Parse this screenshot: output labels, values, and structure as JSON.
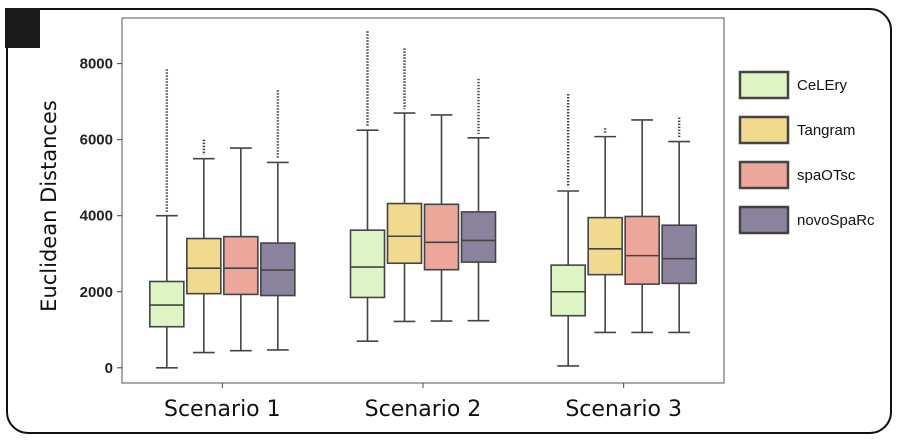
{
  "chart_data": {
    "type": "box",
    "title": "",
    "ylabel": "Euclidean Distances",
    "xlabel": "",
    "ylim": [
      -400,
      9200
    ],
    "yticks": [
      0,
      2000,
      4000,
      6000,
      8000
    ],
    "ytick_labels": [
      "0",
      "2000",
      "4000",
      "6000",
      "8000"
    ],
    "categories": [
      "Scenario 1",
      "Scenario 2",
      "Scenario 3"
    ],
    "legend_position": "right",
    "series": [
      {
        "name": "CeLEry",
        "color": "#dff4c4",
        "boxes": [
          {
            "whisker_low": 0,
            "q1": 1080,
            "median": 1650,
            "q3": 2270,
            "whisker_high": 4000,
            "outliers_from": 4100,
            "outliers_to": 7850
          },
          {
            "whisker_low": 700,
            "q1": 1850,
            "median": 2650,
            "q3": 3620,
            "whisker_high": 6250,
            "outliers_from": 6350,
            "outliers_to": 8850
          },
          {
            "whisker_low": 50,
            "q1": 1370,
            "median": 2000,
            "q3": 2700,
            "whisker_high": 4650,
            "outliers_from": 4750,
            "outliers_to": 7200
          }
        ]
      },
      {
        "name": "Tangram",
        "color": "#f1d98d",
        "boxes": [
          {
            "whisker_low": 400,
            "q1": 1950,
            "median": 2620,
            "q3": 3400,
            "whisker_high": 5500,
            "outliers_from": 5600,
            "outliers_to": 6000
          },
          {
            "whisker_low": 1220,
            "q1": 2750,
            "median": 3460,
            "q3": 4320,
            "whisker_high": 6700,
            "outliers_from": 6800,
            "outliers_to": 8400
          },
          {
            "whisker_low": 930,
            "q1": 2450,
            "median": 3130,
            "q3": 3950,
            "whisker_high": 6080,
            "outliers_from": 6150,
            "outliers_to": 6300
          }
        ]
      },
      {
        "name": "spaOTsc",
        "color": "#eca69a",
        "boxes": [
          {
            "whisker_low": 450,
            "q1": 1930,
            "median": 2620,
            "q3": 3450,
            "whisker_high": 5780,
            "outliers_from": null,
            "outliers_to": null
          },
          {
            "whisker_low": 1230,
            "q1": 2580,
            "median": 3300,
            "q3": 4300,
            "whisker_high": 6650,
            "outliers_from": null,
            "outliers_to": null
          },
          {
            "whisker_low": 930,
            "q1": 2200,
            "median": 2950,
            "q3": 3980,
            "whisker_high": 6520,
            "outliers_from": null,
            "outliers_to": null
          }
        ]
      },
      {
        "name": "novoSpaRc",
        "color": "#8b839e",
        "boxes": [
          {
            "whisker_low": 470,
            "q1": 1900,
            "median": 2570,
            "q3": 3280,
            "whisker_high": 5400,
            "outliers_from": 5500,
            "outliers_to": 7300
          },
          {
            "whisker_low": 1240,
            "q1": 2780,
            "median": 3350,
            "q3": 4100,
            "whisker_high": 6050,
            "outliers_from": 6150,
            "outliers_to": 7600
          },
          {
            "whisker_low": 930,
            "q1": 2220,
            "median": 2870,
            "q3": 3750,
            "whisker_high": 5950,
            "outliers_from": 6050,
            "outliers_to": 6580
          }
        ]
      }
    ]
  }
}
